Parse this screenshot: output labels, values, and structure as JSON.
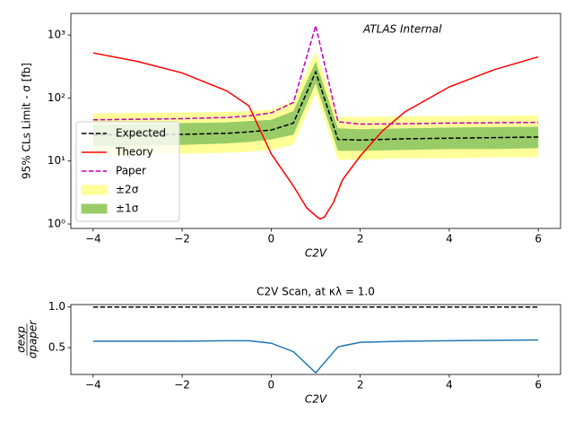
{
  "chart_data": [
    {
      "type": "line",
      "xlabel": "C2V",
      "ylabel": "95% CLs Limit - σ [fb]",
      "annotation": "ATLAS Internal",
      "xlim": [
        -4.5,
        6.5
      ],
      "ylim": [
        0.85,
        2200
      ],
      "ylog": true,
      "xticks": [
        {
          "value": -4,
          "label": "−4"
        },
        {
          "value": -2,
          "label": "−2"
        },
        0,
        2,
        4,
        6
      ],
      "yticks": [
        {
          "value": 1,
          "label": "10⁰"
        },
        {
          "value": 10,
          "label": "10¹"
        },
        {
          "value": 100,
          "label": "10²"
        },
        {
          "value": 1000,
          "label": "10³"
        }
      ],
      "legend": "lower left",
      "series": [
        {
          "name": "Expected",
          "color": "#000000",
          "linestyle": "dashed",
          "x": [
            -4,
            -3,
            -2,
            -1,
            -0.5,
            0,
            0.5,
            1,
            1.5,
            2,
            3,
            4,
            5,
            6
          ],
          "values": [
            26,
            26,
            26.5,
            27.5,
            29,
            31,
            40,
            260,
            22,
            21.5,
            22.5,
            23,
            23.5,
            24
          ]
        },
        {
          "name": "Theory",
          "color": "#ff0000",
          "linestyle": "solid",
          "x": [
            -4,
            -3,
            -2,
            -1,
            -0.5,
            0,
            0.5,
            0.8,
            1,
            1.1,
            1.2,
            1.4,
            1.6,
            2,
            2.5,
            3,
            4,
            5,
            6
          ],
          "values": [
            520,
            380,
            250,
            130,
            75,
            13,
            4,
            1.8,
            1.35,
            1.2,
            1.3,
            2.2,
            5,
            12,
            30,
            60,
            150,
            280,
            450
          ]
        },
        {
          "name": "Paper",
          "color": "#bf00bf",
          "linestyle": "dashed",
          "x": [
            -4,
            -3,
            -2,
            -1,
            -0.5,
            0,
            0.5,
            1,
            1.5,
            2,
            3,
            4,
            5,
            6
          ],
          "values": [
            45,
            46,
            47,
            49,
            52,
            58,
            85,
            1400,
            42,
            38.5,
            39,
            40,
            40.5,
            41
          ]
        },
        {
          "name": "±2σ",
          "color": "#ffff99",
          "x": [
            -4,
            -3,
            -2,
            -1,
            -0.5,
            0,
            0.5,
            1,
            1.5,
            2,
            3,
            4,
            5,
            6
          ],
          "lower": [
            12,
            12.5,
            13,
            13.5,
            14,
            15,
            18,
            120,
            10.5,
            10.5,
            11,
            11,
            11.5,
            11.5
          ],
          "upper": [
            57,
            58,
            59,
            60,
            62,
            65,
            90,
            550,
            50,
            50,
            51,
            52,
            52.5,
            53
          ]
        },
        {
          "name": "±1σ",
          "color": "#99cc66",
          "x": [
            -4,
            -3,
            -2,
            -1,
            -0.5,
            0,
            0.5,
            1,
            1.5,
            2,
            3,
            4,
            5,
            6
          ],
          "lower": [
            17,
            17.5,
            18,
            19,
            20,
            22,
            26,
            170,
            14.5,
            14.5,
            15,
            15.5,
            15.5,
            16
          ],
          "upper": [
            38,
            39,
            40,
            41,
            43,
            45,
            62,
            380,
            33,
            32,
            33,
            34,
            34.5,
            35
          ]
        }
      ]
    },
    {
      "type": "line",
      "title": "C2V Scan, at κλ = 1.0",
      "xlabel": "C2V",
      "ylabel": {
        "numerator": "σexp",
        "denominator": "σpaper"
      },
      "xlim": [
        -4.5,
        6.5
      ],
      "ylim": [
        0.17,
        1.03
      ],
      "xticks": [
        {
          "value": -4,
          "label": "−4"
        },
        {
          "value": -2,
          "label": "−2"
        },
        0,
        2,
        4,
        6
      ],
      "yticks": [
        0.5,
        {
          "value": 1,
          "label": "1.0"
        }
      ],
      "series": [
        {
          "color": "#000000",
          "linestyle": "dashed",
          "x": [
            -4,
            6
          ],
          "values": [
            1,
            1
          ]
        },
        {
          "color": "#1f77b4",
          "linestyle": "solid",
          "x": [
            -4,
            -3,
            -2,
            -1,
            -0.5,
            0,
            0.5,
            1,
            1.5,
            2,
            3,
            4,
            5,
            6
          ],
          "values": [
            0.58,
            0.58,
            0.58,
            0.585,
            0.585,
            0.555,
            0.45,
            0.19,
            0.51,
            0.565,
            0.58,
            0.585,
            0.59,
            0.595
          ]
        }
      ]
    }
  ]
}
